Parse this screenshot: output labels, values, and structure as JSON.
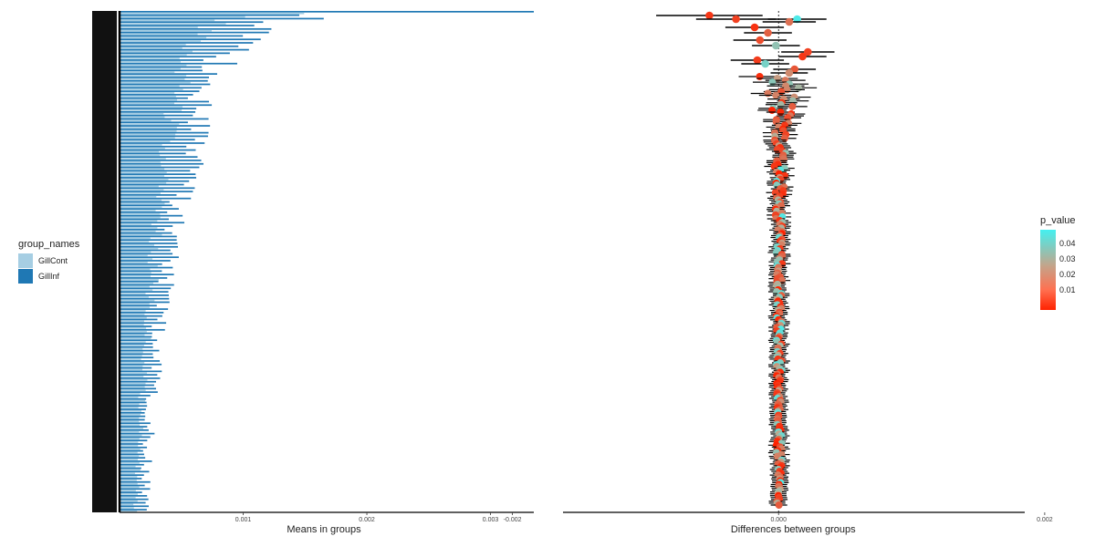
{
  "chart_data": [
    {
      "type": "bar",
      "orientation": "horizontal",
      "title": "",
      "xlabel": "Means in groups",
      "ylabel": "",
      "xlim": [
        0,
        0.00335
      ],
      "x_ticks": [
        0.001,
        0.002,
        0.003
      ],
      "x_tick_labels": [
        "0.001",
        "0.002",
        "0.003"
      ],
      "grid": false,
      "legend_title": "group_names",
      "legend_position": "left",
      "colors": {
        "GillCont": "#a6cee3",
        "GillInf": "#1f78b4"
      },
      "series": [
        {
          "name": "GillCont",
          "color": "#a6cee3",
          "values": [
            0.00021,
            0.00018,
            0.00016,
            0.00014,
            0.00012,
            0.00011,
            0.0001,
            9e-05,
            8e-05,
            7e-05,
            6e-05,
            5e-05,
            4e-05,
            3e-05
          ]
        },
        {
          "name": "GillInf",
          "color": "#1f78b4",
          "values": [
            0.00335,
            0.00152,
            0.00108,
            0.00089,
            0.00078,
            0.00068,
            0.00062,
            0.00055,
            0.00046,
            0.00041,
            0.00032,
            0.00028,
            0.00023,
            0.0002
          ]
        }
      ]
    },
    {
      "type": "scatter",
      "title": "",
      "xlabel": "Differences between groups",
      "ylabel": "",
      "xlim": [
        -0.00162,
        0.00185
      ],
      "x_ticks": [
        -0.002,
        0.0,
        0.002
      ],
      "x_tick_labels": [
        "-0.002",
        "0.000",
        "0.002"
      ],
      "grid": false,
      "reference_line_x": 0.0,
      "legend_title": "p_value",
      "legend_position": "right",
      "colorbar": {
        "min": 0.0,
        "max": 0.05,
        "ticks": [
          0.04,
          0.03,
          0.02,
          0.01
        ],
        "tick_labels": [
          "0.04",
          "0.03",
          "0.02",
          "0.01"
        ],
        "low_color": "#ff2200",
        "mid_color": "#c4a48a",
        "high_color": "#44f0f0"
      },
      "points_shown": [
        {
          "diff": -0.00052,
          "lo": -0.00092,
          "hi": -0.00012,
          "p": 0.004
        },
        {
          "diff": -0.00032,
          "lo": -0.00062,
          "hi": -2e-05,
          "p": 0.006
        },
        {
          "diff": 0.00014,
          "lo": -8e-05,
          "hi": 0.00036,
          "p": 0.048
        },
        {
          "diff": 8e-05,
          "lo": -0.00012,
          "hi": 0.00028,
          "p": 0.015
        },
        {
          "diff": -0.00018,
          "lo": -0.0004,
          "hi": 4e-05,
          "p": 0.003
        },
        {
          "diff": -8e-05,
          "lo": -0.00026,
          "hi": 0.0001,
          "p": 0.012
        },
        {
          "diff": -0.00014,
          "lo": -0.00034,
          "hi": 6e-05,
          "p": 0.008
        },
        {
          "diff": -2e-05,
          "lo": -0.0002,
          "hi": 0.00016,
          "p": 0.035
        },
        {
          "diff": 0.00022,
          "lo": 2e-05,
          "hi": 0.00042,
          "p": 0.006
        },
        {
          "diff": 0.00018,
          "lo": 0.0,
          "hi": 0.00036,
          "p": 0.004
        },
        {
          "diff": -0.00016,
          "lo": -0.00036,
          "hi": 4e-05,
          "p": 0.005
        },
        {
          "diff": -0.0001,
          "lo": -0.00028,
          "hi": 8e-05,
          "p": 0.04
        },
        {
          "diff": 0.00012,
          "lo": -4e-05,
          "hi": 0.00028,
          "p": 0.01
        },
        {
          "diff": 8e-05,
          "lo": -6e-05,
          "hi": 0.00022,
          "p": 0.02
        }
      ]
    }
  ],
  "legend": {
    "group_title": "group_names",
    "group_items": [
      {
        "label": "GillCont",
        "color": "#a6cee3"
      },
      {
        "label": "GillInf",
        "color": "#1f78b4"
      }
    ],
    "pvalue_title": "p_value",
    "pvalue_ticks": [
      "0.04",
      "0.03",
      "0.02",
      "0.01"
    ]
  }
}
